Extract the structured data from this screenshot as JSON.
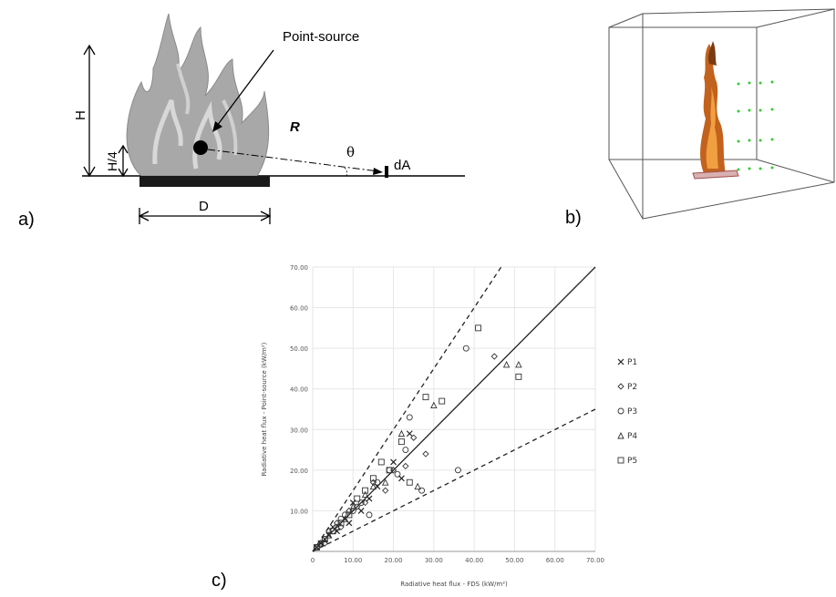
{
  "panel_labels": {
    "a": "a)",
    "b": "b)",
    "c": "c)"
  },
  "diagram_a": {
    "point_source": "Point-source",
    "R": "R",
    "theta": "θ",
    "dA": "dA",
    "H": "H",
    "H4": "H/4",
    "D": "D"
  },
  "colors": {
    "flame_grey": "#9b9b9b",
    "pool": "#1a1a1a",
    "fire": "#d9711f",
    "sensor": "#33cc33"
  },
  "chart_data": {
    "type": "scatter",
    "title": "",
    "xlabel": "Radiative heat flux - FDS (kW/m²)",
    "ylabel": "Radiative heat flux - Point-source (kW/m²)",
    "xlim": [
      0,
      70
    ],
    "ylim": [
      0,
      70
    ],
    "xticks": [
      "0",
      "10.00",
      "20.00",
      "30.00",
      "40.00",
      "50.00",
      "60.00",
      "70.00"
    ],
    "yticks": [
      "",
      "10.00",
      "20.00",
      "30.00",
      "40.00",
      "50.00",
      "60.00",
      "70.00"
    ],
    "reference_lines": [
      {
        "style": "solid",
        "slope": 1.0
      },
      {
        "style": "dashed",
        "slope": 1.5
      },
      {
        "style": "dashed",
        "slope": 0.5
      }
    ],
    "series": [
      {
        "name": "P1",
        "marker": "x",
        "points": [
          [
            1,
            1
          ],
          [
            2,
            2
          ],
          [
            3,
            3
          ],
          [
            4,
            4
          ],
          [
            5,
            6
          ],
          [
            6,
            5
          ],
          [
            8,
            8
          ],
          [
            9,
            7
          ],
          [
            10,
            12
          ],
          [
            12,
            10
          ],
          [
            14,
            13
          ],
          [
            16,
            16
          ],
          [
            20,
            22
          ],
          [
            22,
            18
          ],
          [
            24,
            29
          ]
        ]
      },
      {
        "name": "P2",
        "marker": "diamond",
        "points": [
          [
            1,
            1
          ],
          [
            3,
            2
          ],
          [
            4,
            5
          ],
          [
            6,
            7
          ],
          [
            7,
            6
          ],
          [
            9,
            10
          ],
          [
            11,
            11
          ],
          [
            13,
            12
          ],
          [
            15,
            17
          ],
          [
            18,
            15
          ],
          [
            20,
            20
          ],
          [
            23,
            21
          ],
          [
            25,
            28
          ],
          [
            28,
            24
          ],
          [
            45,
            48
          ]
        ]
      },
      {
        "name": "P3",
        "marker": "circle",
        "points": [
          [
            2,
            2
          ],
          [
            3,
            3
          ],
          [
            5,
            5
          ],
          [
            7,
            8
          ],
          [
            8,
            9
          ],
          [
            10,
            10
          ],
          [
            12,
            12
          ],
          [
            14,
            9
          ],
          [
            16,
            17
          ],
          [
            19,
            20
          ],
          [
            21,
            19
          ],
          [
            23,
            25
          ],
          [
            24,
            33
          ],
          [
            27,
            15
          ],
          [
            36,
            20
          ],
          [
            38,
            50
          ]
        ]
      },
      {
        "name": "P4",
        "marker": "triangle",
        "points": [
          [
            2,
            2
          ],
          [
            4,
            4
          ],
          [
            6,
            6
          ],
          [
            8,
            8
          ],
          [
            10,
            11
          ],
          [
            13,
            14
          ],
          [
            15,
            16
          ],
          [
            18,
            17
          ],
          [
            22,
            29
          ],
          [
            26,
            16
          ],
          [
            30,
            36
          ],
          [
            48,
            46
          ],
          [
            51,
            46
          ]
        ]
      },
      {
        "name": "P5",
        "marker": "square",
        "points": [
          [
            1,
            1
          ],
          [
            3,
            3
          ],
          [
            5,
            5
          ],
          [
            7,
            7
          ],
          [
            9,
            9
          ],
          [
            11,
            13
          ],
          [
            13,
            15
          ],
          [
            15,
            18
          ],
          [
            17,
            22
          ],
          [
            19,
            20
          ],
          [
            22,
            27
          ],
          [
            24,
            17
          ],
          [
            28,
            38
          ],
          [
            32,
            37
          ],
          [
            41,
            55
          ],
          [
            51,
            43
          ]
        ]
      }
    ]
  }
}
